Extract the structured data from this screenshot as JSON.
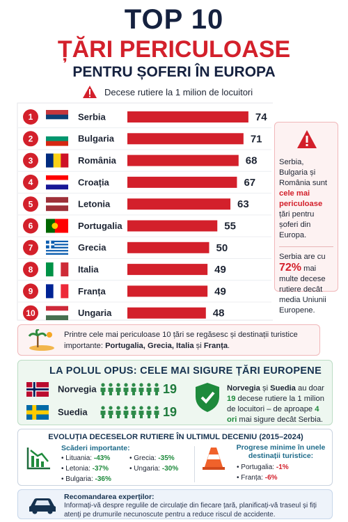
{
  "header": {
    "title1": "TOP 10",
    "title2": "ȚĂRI PERICULOASE",
    "title3": "PENTRU ȘOFERI ÎN EUROPA"
  },
  "chart_data": {
    "type": "bar",
    "subtitle": "Decese rutiere la 1 milion de locuitori",
    "ranks": [
      "1",
      "2",
      "3",
      "4",
      "5",
      "6",
      "7",
      "8",
      "9",
      "10"
    ],
    "categories": [
      "Serbia",
      "Bulgaria",
      "România",
      "Croația",
      "Letonia",
      "Portugalia",
      "Grecia",
      "Italia",
      "Franța",
      "Ungaria"
    ],
    "values": [
      74,
      71,
      68,
      67,
      63,
      55,
      50,
      49,
      49,
      48
    ],
    "color": "#d3202b"
  },
  "side_note": {
    "text": [
      "Serbia, Bulgaria și România sunt ",
      "cele mai periculoase",
      " țări pentru șoferi din Europa."
    ],
    "stat": [
      "Serbia are cu ",
      "72%",
      " mai multe decese rutiere decât media Uniunii Europene."
    ]
  },
  "tourism": {
    "text": [
      "Printre cele mai periculoase 10 țări se regăsesc și destinații turistice importante: ",
      "Portugalia, Grecia, Italia",
      " și ",
      "Franța",
      "."
    ]
  },
  "safest": {
    "title": "LA POLUL OPUS: CELE MAI SIGURE ȚĂRI EUROPENE",
    "countries": [
      {
        "name": "Norvegia",
        "value": 19
      },
      {
        "name": "Suedia",
        "value": 19
      }
    ],
    "text": [
      "Norvegia",
      " și ",
      "Suedia",
      " au doar ",
      "19",
      " decese rutiere la 1 milion de locuitori – de aproape ",
      "4 ori",
      " mai sigure decât Serbia."
    ]
  },
  "evolution": {
    "title": "EVOLUȚIA DECESELOR RUTIERE ÎN ULTIMUL DECENIU (2015–2024)",
    "decreases_title": "Scăderi importante:",
    "decreases": [
      {
        "name": "Lituania:",
        "change": "-43%"
      },
      {
        "name": "Letonia:",
        "change": "-37%"
      },
      {
        "name": "Bulgaria:",
        "change": "-36%"
      },
      {
        "name": "Grecia:",
        "change": "-35%"
      },
      {
        "name": "Ungaria:",
        "change": "-30%"
      }
    ],
    "minimal_title": "Progrese minime în unele destinații turistice:",
    "minimal": [
      {
        "name": "Portugalia:",
        "change": "-1%"
      },
      {
        "name": "Franța:",
        "change": "-6%"
      }
    ]
  },
  "recommendation": {
    "title": "Recomandarea experților:",
    "text": "Informați-vă despre regulile de circulație din fiecare țară, planificați-vă traseul și fiți atenți pe drumurile necunoscute pentru a reduce riscul de accidente."
  }
}
